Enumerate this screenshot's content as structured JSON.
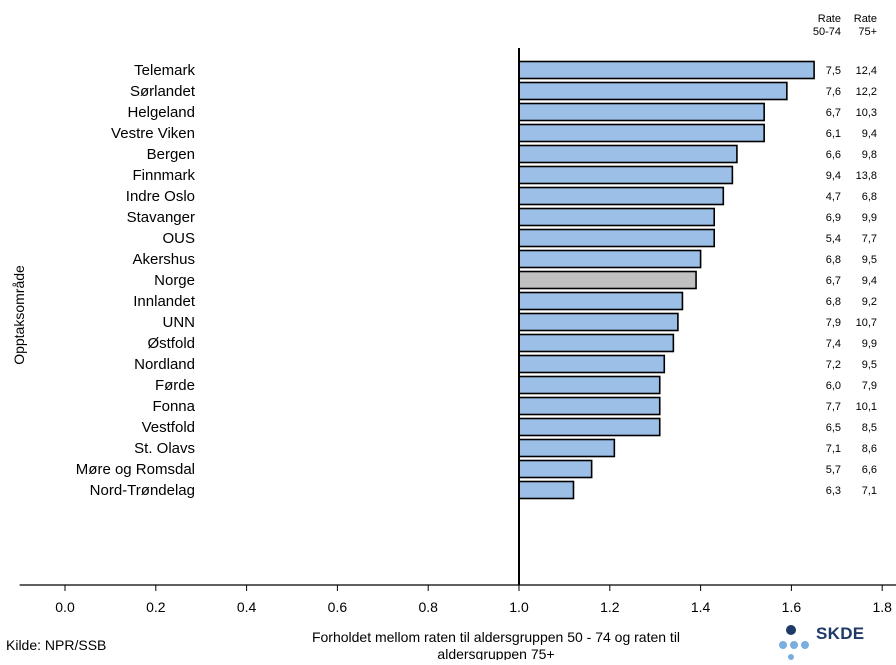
{
  "chart_data": {
    "type": "bar",
    "orientation": "horizontal",
    "categories": [
      "Telemark",
      "Sørlandet",
      "Helgeland",
      "Vestre Viken",
      "Bergen",
      "Finnmark",
      "Indre Oslo",
      "Stavanger",
      "OUS",
      "Akershus",
      "Norge",
      "Innlandet",
      "UNN",
      "Østfold",
      "Nordland",
      "Førde",
      "Fonna",
      "Vestfold",
      "St. Olavs",
      "Møre og Romsdal",
      "Nord-Trøndelag"
    ],
    "values": [
      1.65,
      1.59,
      1.54,
      1.54,
      1.48,
      1.47,
      1.45,
      1.43,
      1.43,
      1.4,
      1.39,
      1.36,
      1.35,
      1.34,
      1.32,
      1.31,
      1.31,
      1.31,
      1.21,
      1.16,
      1.12
    ],
    "highlight_category": "Norge",
    "colors": {
      "bar": "#9bbfe7",
      "highlight": "#c0c0c0",
      "outline": "#000000"
    },
    "xlim": [
      -0.1,
      2.35
    ],
    "baseline": 1.0,
    "xticks": [
      "0.0",
      "0.2",
      "0.4",
      "0.6",
      "0.8",
      "1.0",
      "1.2",
      "1.4",
      "1.6",
      "1.8",
      "2.0"
    ],
    "xlabel": "Forholdet mellom raten til aldersgruppen 50 - 74 og raten til aldersgruppen 75+",
    "ylabel": "Opptaksområde",
    "table": {
      "headers": [
        "Rate 50-74",
        "Rate 75+"
      ],
      "rate_50_74": [
        "7,5",
        "7,6",
        "6,7",
        "6,1",
        "6,6",
        "9,4",
        "4,7",
        "6,9",
        "5,4",
        "6,8",
        "6,7",
        "6,8",
        "7,9",
        "7,4",
        "7,2",
        "6,0",
        "7,7",
        "6,5",
        "7,1",
        "5,7",
        "6,3"
      ],
      "rate_75": [
        "12,4",
        "12,2",
        "10,3",
        "9,4",
        "9,8",
        "13,8",
        "6,8",
        "9,9",
        "7,7",
        "9,5",
        "9,4",
        "9,2",
        "10,7",
        "9,9",
        "9,5",
        "7,9",
        "10,1",
        "8,5",
        "8,6",
        "6,6",
        "7,1"
      ]
    }
  },
  "source_note": "Kilde: NPR/SSB",
  "logo": {
    "text": "SKDE",
    "colors": {
      "dark": "#1f3a68",
      "light": "#7aaee0"
    }
  }
}
